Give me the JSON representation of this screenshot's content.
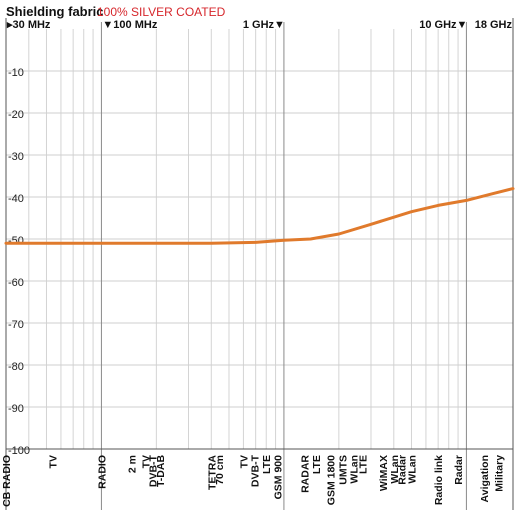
{
  "chart_data": {
    "type": "line",
    "title": "Shielding fabric",
    "subtitle": "100% SILVER COATED",
    "x_scale": "log",
    "x_unit": "MHz",
    "xlim": [
      30,
      18000
    ],
    "ylim": [
      -100,
      0
    ],
    "y_ticks": [
      -10,
      -20,
      -30,
      -40,
      -50,
      -60,
      -70,
      -80,
      -90,
      -100
    ],
    "frequency_ticks": [
      {
        "label": "30 MHz",
        "value": 30
      },
      {
        "label": "100 MHz",
        "value": 100
      },
      {
        "label": "1 GHz",
        "value": 1000
      },
      {
        "label": "10 GHz",
        "value": 10000
      },
      {
        "label": "18 GHz",
        "value": 18000
      }
    ],
    "grid": true,
    "line_color": "#e07a2c",
    "series": [
      {
        "name": "",
        "x": [
          30,
          50,
          100,
          200,
          400,
          700,
          1000,
          1400,
          2000,
          3000,
          5000,
          7000,
          10000,
          14000,
          18000
        ],
        "y": [
          -51,
          -51,
          -51,
          -51,
          -51,
          -50.8,
          -50.3,
          -50,
          -48.8,
          -46.5,
          -43.5,
          -42,
          -40.8,
          -39.2,
          -38
        ]
      }
    ],
    "bands": [
      {
        "label": "CB RADIO",
        "value": 30
      },
      {
        "label": "TV",
        "value": 54
      },
      {
        "label": "RADIO",
        "value": 100
      },
      {
        "label": "2 m",
        "value": 146
      },
      {
        "label": "TV",
        "value": 174
      },
      {
        "label": "DVB-T",
        "value": 190
      },
      {
        "label": "T-DAB",
        "value": 209
      },
      {
        "label": "TETRA",
        "value": 400
      },
      {
        "label": "70 cm",
        "value": 440
      },
      {
        "label": "TV",
        "value": 600
      },
      {
        "label": "DVB-T",
        "value": 690
      },
      {
        "label": "LTE",
        "value": 800
      },
      {
        "label": "GSM 900",
        "value": 920
      },
      {
        "label": "RADAR",
        "value": 1300
      },
      {
        "label": "LTE",
        "value": 1500
      },
      {
        "label": "GSM 1800",
        "value": 1800
      },
      {
        "label": "UMTS",
        "value": 2100
      },
      {
        "label": "WLan",
        "value": 2400
      },
      {
        "label": "LTE",
        "value": 2700
      },
      {
        "label": "WiMAX",
        "value": 3500
      },
      {
        "label": "WLan",
        "value": 4000
      },
      {
        "label": "Radar",
        "value": 4400
      },
      {
        "label": "WLan",
        "value": 5000
      },
      {
        "label": "Radio link",
        "value": 7000
      },
      {
        "label": "Radar",
        "value": 9000
      },
      {
        "label": "Avigation",
        "value": 12500
      },
      {
        "label": "Military",
        "value": 15000
      }
    ]
  }
}
